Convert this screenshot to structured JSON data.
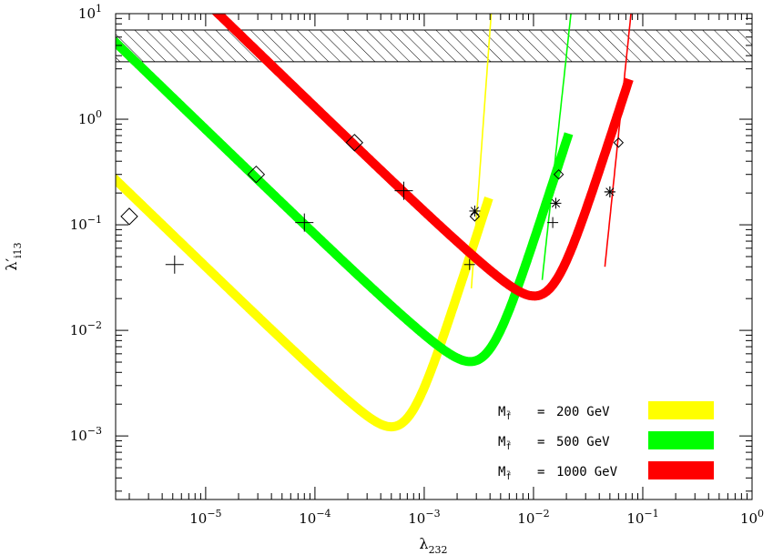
{
  "chart_data": {
    "type": "line",
    "xlabel": "λ",
    "xlabel_sub": "232",
    "ylabel": "λ′",
    "ylabel_sub": "i13",
    "xscale": "log",
    "yscale": "log",
    "xlim": [
      1.5e-06,
      1.0
    ],
    "ylim": [
      0.00025,
      10.0
    ],
    "x_ticks": [
      {
        "value": 1e-05,
        "base": "10",
        "exp": "−5"
      },
      {
        "value": 0.0001,
        "base": "10",
        "exp": "−4"
      },
      {
        "value": 0.001,
        "base": "10",
        "exp": "−3"
      },
      {
        "value": 0.01,
        "base": "10",
        "exp": "−2"
      },
      {
        "value": 0.1,
        "base": "10",
        "exp": "−1"
      },
      {
        "value": 1.0,
        "base": "10",
        "exp": "0"
      }
    ],
    "y_ticks": [
      {
        "value": 0.001,
        "base": "10",
        "exp": "−3"
      },
      {
        "value": 0.01,
        "base": "10",
        "exp": "−2"
      },
      {
        "value": 0.1,
        "base": "10",
        "exp": "−1"
      },
      {
        "value": 1.0,
        "base": "10",
        "exp": "0"
      },
      {
        "value": 10.0,
        "base": "10",
        "exp": "1"
      }
    ],
    "excluded_band": {
      "y_min": 3.5,
      "y_max": 7.0
    },
    "series": [
      {
        "name": "M = 200 GeV",
        "mass_gev": "200",
        "color": "#ffff00",
        "band": {
          "xmin_curve": 0.00055,
          "ymin_curve": 0.00068,
          "coeff": 4e-07,
          "x_end": 0.0039,
          "end_value": 10.0
        },
        "thin": {
          "x0": 0.0027,
          "y0": 0.025,
          "x1": 0.0041,
          "y1": 10.0
        },
        "diamond_big": {
          "x": 2e-06,
          "y": 0.12
        },
        "plus_big": {
          "x": 5.2e-06,
          "y": 0.042
        },
        "diamond_small": {
          "x": 0.0029,
          "y": 0.12
        },
        "star_small": {
          "x": 0.0029,
          "y": 0.135
        },
        "plus_small": {
          "x": 0.0026,
          "y": 0.042
        }
      },
      {
        "name": "M = 500 GeV",
        "mass_gev": "500",
        "color": "#00ff00",
        "band": {
          "xmin_curve": 0.0034,
          "ymin_curve": 0.0043,
          "coeff": 8e-06,
          "x_end": 0.021,
          "end_value": 10.0
        },
        "thin": {
          "x0": 0.012,
          "y0": 0.03,
          "x1": 0.022,
          "y1": 10.0
        },
        "diamond_big": {
          "x": 2.9e-05,
          "y": 0.3
        },
        "plus_big": {
          "x": 8e-05,
          "y": 0.105
        },
        "diamond_small": {
          "x": 0.017,
          "y": 0.3
        },
        "star_small": {
          "x": 0.016,
          "y": 0.16
        },
        "plus_small": {
          "x": 0.015,
          "y": 0.105
        }
      },
      {
        "name": "M = 1000 GeV",
        "mass_gev": "1000",
        "color": "#ff0000",
        "band": {
          "xmin_curve": 0.013,
          "ymin_curve": 0.0175,
          "coeff": 0.00013,
          "x_end": 0.075,
          "end_value": 10.0
        },
        "thin": {
          "x0": 0.045,
          "y0": 0.04,
          "x1": 0.078,
          "y1": 10.0
        },
        "diamond_big": {
          "x": 0.00023,
          "y": 0.6
        },
        "plus_big": {
          "x": 0.00065,
          "y": 0.21
        },
        "diamond_small": {
          "x": 0.06,
          "y": 0.6
        },
        "star_small": {
          "x": 0.05,
          "y": 0.205
        },
        "plus_small": {
          "x": 0.05,
          "y": 0.205
        }
      }
    ],
    "legend": {
      "placement": "bottom-right",
      "entries": [
        {
          "symbol": "M",
          "sub": "f̃",
          "eq": "=",
          "value": "200",
          "unit": "GeV",
          "color": "#ffff00"
        },
        {
          "symbol": "M",
          "sub": "f̃",
          "eq": "=",
          "value": "500",
          "unit": "GeV",
          "color": "#00ff00"
        },
        {
          "symbol": "M",
          "sub": "f̃",
          "eq": "=",
          "value": "1000",
          "unit": "GeV",
          "color": "#ff0000"
        }
      ]
    }
  }
}
